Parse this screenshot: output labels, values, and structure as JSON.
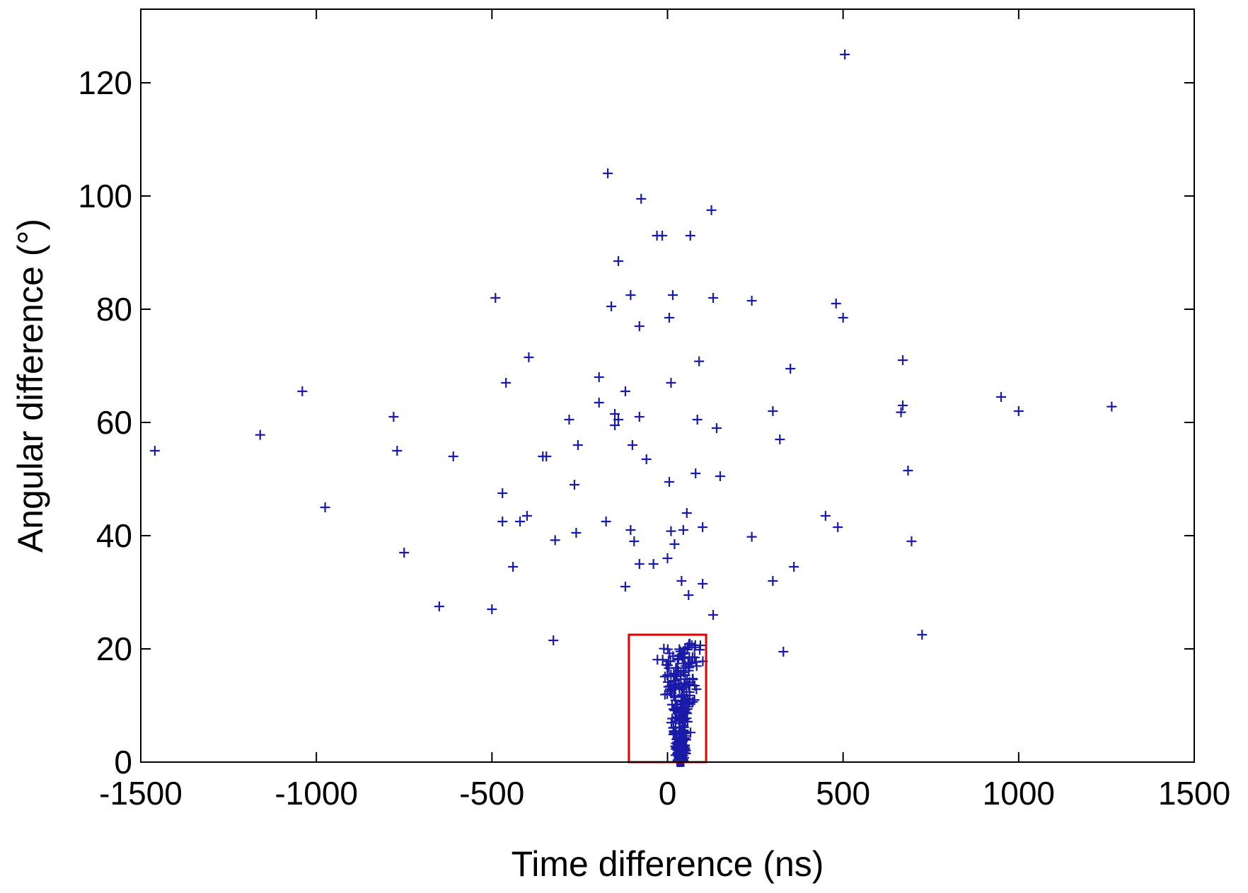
{
  "chart_data": {
    "type": "scatter",
    "title": "",
    "xlabel": "Time difference (ns)",
    "ylabel": "Angular difference (°)",
    "xlim": [
      -1500,
      1500
    ],
    "ylim": [
      0,
      133
    ],
    "xticks": [
      -1500,
      -1000,
      -500,
      0,
      500,
      1000,
      1500
    ],
    "yticks": [
      0,
      20,
      40,
      60,
      80,
      100,
      120
    ],
    "xtick_labels": [
      "-1500",
      "-1000",
      "-500",
      "0",
      "500",
      "1000",
      "1500"
    ],
    "ytick_labels": [
      "0",
      "20",
      "40",
      "60",
      "80",
      "100",
      "120"
    ],
    "grid": false,
    "legend": "none",
    "marker": "+",
    "colors": {
      "marker": "#1a1aa8",
      "box": "#e00000",
      "axes": "#000000"
    },
    "selection_box": {
      "x": [
        -110,
        110
      ],
      "y": [
        0,
        22.5
      ]
    },
    "series": [
      {
        "x": [
          505,
          -170,
          -75,
          125,
          -30,
          -15,
          65,
          -140,
          -490,
          -105,
          -160,
          15,
          130,
          240,
          480,
          500,
          -80,
          5,
          -395,
          -460,
          -195,
          -150,
          -120,
          -195,
          90,
          10,
          350,
          670,
          670,
          665,
          950,
          1000,
          1265,
          -1040,
          -1160,
          -1460,
          -780,
          -770,
          -610,
          -355,
          -345,
          -280,
          -255,
          -140,
          -100,
          -60,
          -150,
          -80,
          85,
          140,
          300,
          320,
          5,
          80,
          150,
          -265,
          -470,
          -975,
          55,
          450,
          485,
          -175,
          -400,
          -470,
          -440,
          -260,
          -320,
          -750,
          -420,
          240,
          100,
          45,
          10,
          20,
          685,
          695,
          -105,
          -95,
          -650,
          -500,
          -325,
          -120,
          -80,
          -40,
          0,
          40,
          60,
          100,
          130,
          300,
          360,
          725,
          330
        ],
        "y": [
          125,
          104,
          99.5,
          97.5,
          93,
          93,
          93,
          88.5,
          82,
          82.5,
          80.5,
          82.5,
          82,
          81.5,
          81,
          78.5,
          77,
          78.5,
          71.5,
          67,
          68,
          61.5,
          65.5,
          63.5,
          70.8,
          67,
          69.5,
          71,
          63,
          61.8,
          64.5,
          62,
          62.8,
          65.5,
          57.8,
          55,
          61,
          55,
          54,
          54,
          54,
          60.5,
          56,
          60.5,
          56,
          53.5,
          59.5,
          61,
          60.5,
          59,
          62,
          57,
          49.5,
          51,
          50.5,
          49,
          47.5,
          45,
          44,
          43.5,
          41.5,
          42.5,
          43.5,
          42.5,
          34.5,
          40.5,
          39.2,
          37,
          42.5,
          39.8,
          41.5,
          41,
          40.8,
          38.5,
          51.5,
          39,
          41,
          39,
          27.5,
          27,
          21.5,
          31,
          35,
          35,
          36,
          32,
          29.5,
          31.5,
          26,
          32,
          34.5,
          22.5,
          19.5
        ]
      }
    ]
  }
}
